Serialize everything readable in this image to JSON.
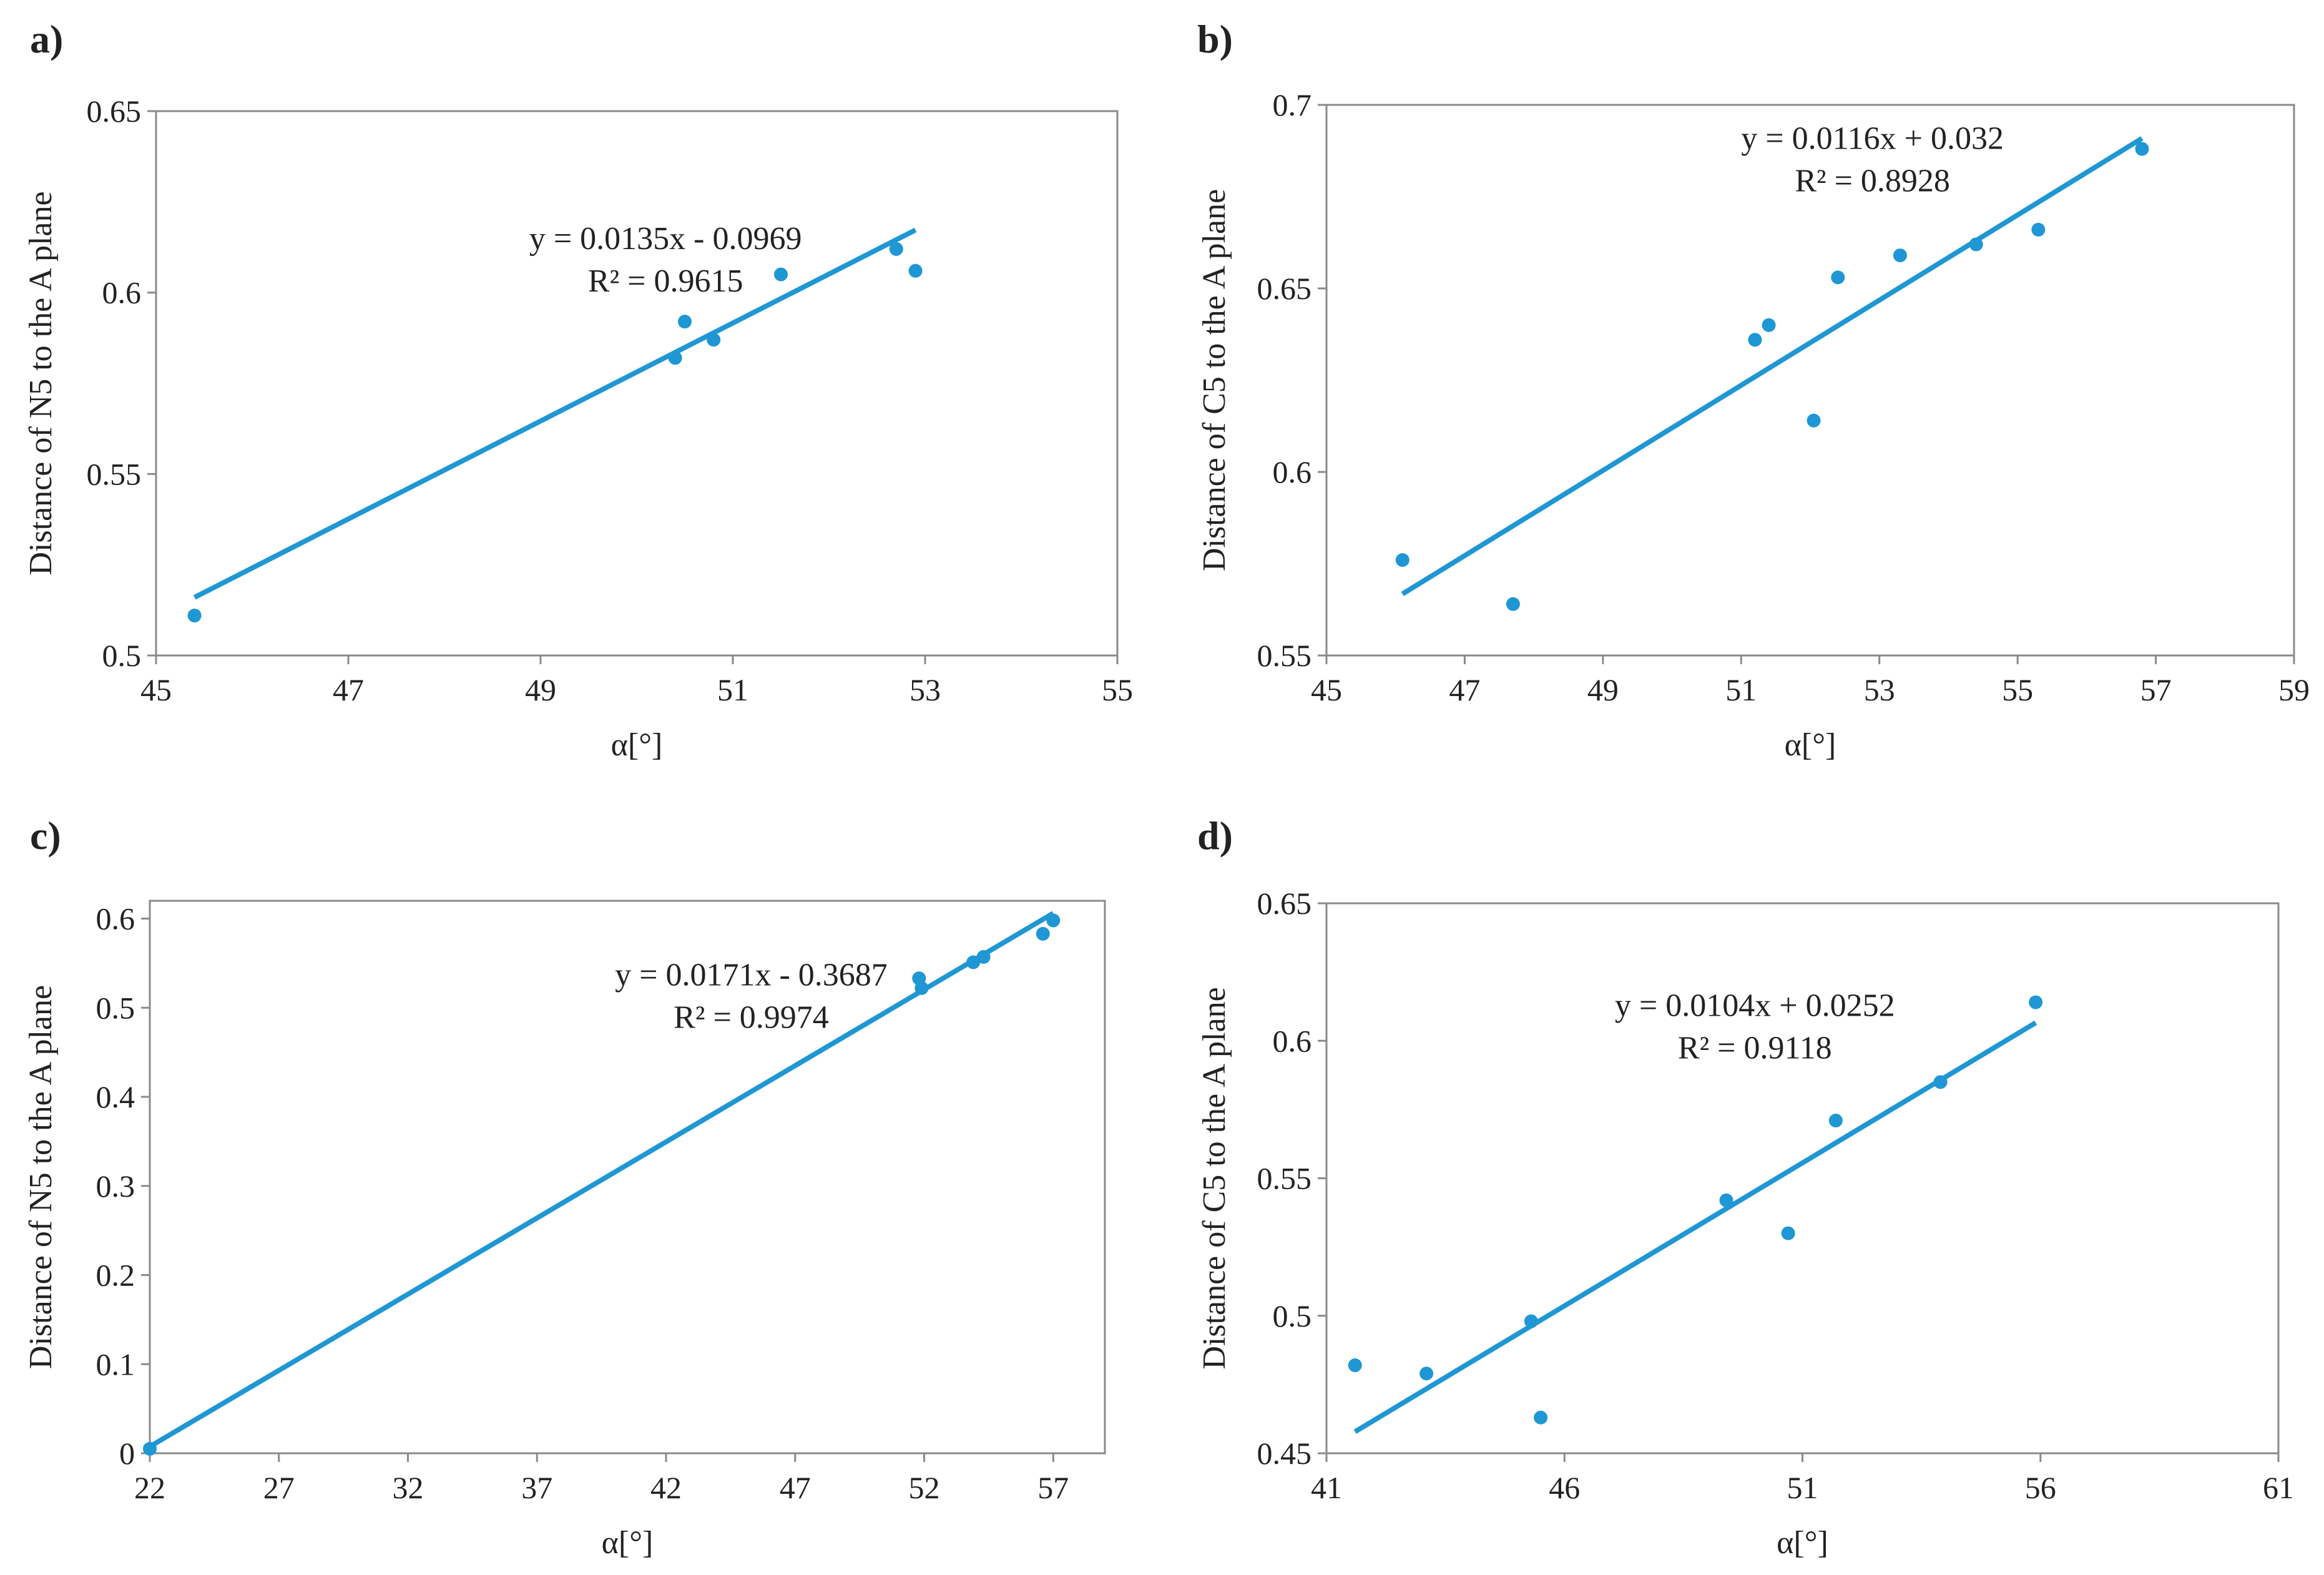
{
  "style": {
    "point_color": "#1f97d4",
    "line_color": "#1f97d4",
    "frame_color": "#8a8a8a"
  },
  "chart_data": [
    {
      "type": "scatter",
      "panel_label": "a)",
      "xlabel": "α[°]",
      "ylabel": "Distance of N5 to the A plane",
      "xlim": [
        45,
        55
      ],
      "ylim": [
        0.5,
        0.65
      ],
      "xticks": [
        45,
        47,
        49,
        51,
        53,
        55
      ],
      "xtick_labels": [
        "45",
        "47",
        "49",
        "51",
        "53",
        "55"
      ],
      "yticks": [
        0.5,
        0.55,
        0.6,
        0.65
      ],
      "ytick_labels": [
        "0.5",
        "0.55",
        "0.6",
        "0.65"
      ],
      "grid": false,
      "points": [
        [
          45.4,
          0.511
        ],
        [
          50.4,
          0.582
        ],
        [
          50.5,
          0.592
        ],
        [
          50.8,
          0.587
        ],
        [
          51.5,
          0.605
        ],
        [
          52.7,
          0.612
        ],
        [
          52.9,
          0.606
        ]
      ],
      "trendline": {
        "slope": 0.0135,
        "intercept": -0.0969,
        "x_range": [
          45.4,
          52.9
        ]
      },
      "equation": "y = 0.0135x - 0.0969",
      "r_squared": "R² = 0.9615",
      "annotation_anchor": [
        50.3,
        0.612
      ]
    },
    {
      "type": "scatter",
      "panel_label": "b)",
      "xlabel": "α[°]",
      "ylabel": "Distance of C5 to the A plane",
      "xlim": [
        45,
        59
      ],
      "ylim": [
        0.55,
        0.7
      ],
      "xticks": [
        45,
        47,
        49,
        51,
        53,
        55,
        57,
        59
      ],
      "xtick_labels": [
        "45",
        "47",
        "49",
        "51",
        "53",
        "55",
        "57",
        "59"
      ],
      "yticks": [
        0.55,
        0.6,
        0.65,
        0.7
      ],
      "ytick_labels": [
        "0.55",
        "0.6",
        "0.65",
        "0.7"
      ],
      "grid": false,
      "points": [
        [
          46.1,
          0.576
        ],
        [
          47.7,
          0.564
        ],
        [
          51.2,
          0.636
        ],
        [
          51.4,
          0.64
        ],
        [
          52.05,
          0.614
        ],
        [
          52.4,
          0.653
        ],
        [
          53.3,
          0.659
        ],
        [
          54.4,
          0.662
        ],
        [
          55.3,
          0.666
        ],
        [
          56.8,
          0.688
        ]
      ],
      "trendline": {
        "slope": 0.0116,
        "intercept": 0.032,
        "x_range": [
          46.1,
          56.8
        ]
      },
      "equation": "y = 0.0116x + 0.032",
      "r_squared": "R² = 0.8928",
      "annotation_anchor": [
        52.9,
        0.688
      ]
    },
    {
      "type": "scatter",
      "panel_label": "c)",
      "xlabel": "α[°]",
      "ylabel": "Distance of N5 to the A plane",
      "xlim": [
        22,
        59
      ],
      "ylim": [
        0,
        0.62
      ],
      "xticks": [
        22,
        27,
        32,
        37,
        42,
        47,
        52,
        57
      ],
      "xtick_labels": [
        "22",
        "27",
        "32",
        "37",
        "42",
        "47",
        "52",
        "57"
      ],
      "yticks": [
        0,
        0.1,
        0.2,
        0.3,
        0.4,
        0.5,
        0.6
      ],
      "ytick_labels": [
        "0",
        "0.1",
        "0.2",
        "0.3",
        "0.4",
        "0.5",
        "0.6"
      ],
      "grid": false,
      "points": [
        [
          22.0,
          0.005
        ],
        [
          51.8,
          0.533
        ],
        [
          51.9,
          0.522
        ],
        [
          53.9,
          0.551
        ],
        [
          54.3,
          0.557
        ],
        [
          56.6,
          0.583
        ],
        [
          57.0,
          0.598
        ]
      ],
      "trendline": {
        "slope": 0.0171,
        "intercept": -0.3687,
        "x_range": [
          22.0,
          57.0
        ]
      },
      "equation": "y = 0.0171x - 0.3687",
      "r_squared": "R² = 0.9974",
      "annotation_anchor": [
        45.3,
        0.525
      ]
    },
    {
      "type": "scatter",
      "panel_label": "d)",
      "xlabel": "α[°]",
      "ylabel": "Distance of C5 to the A plane",
      "xlim": [
        41,
        61
      ],
      "ylim": [
        0.45,
        0.65
      ],
      "xticks": [
        41,
        46,
        51,
        56,
        61
      ],
      "xtick_labels": [
        "41",
        "46",
        "51",
        "56",
        "61"
      ],
      "yticks": [
        0.45,
        0.5,
        0.55,
        0.6,
        0.65
      ],
      "ytick_labels": [
        "0.45",
        "0.5",
        "0.55",
        "0.6",
        "0.65"
      ],
      "grid": false,
      "points": [
        [
          41.6,
          0.482
        ],
        [
          43.1,
          0.479
        ],
        [
          45.3,
          0.498
        ],
        [
          45.5,
          0.463
        ],
        [
          49.4,
          0.542
        ],
        [
          50.7,
          0.53
        ],
        [
          51.7,
          0.571
        ],
        [
          53.9,
          0.585
        ],
        [
          55.9,
          0.614
        ]
      ],
      "trendline": {
        "slope": 0.0104,
        "intercept": 0.0252,
        "x_range": [
          41.6,
          55.9
        ]
      },
      "equation": "y = 0.0104x + 0.0252",
      "r_squared": "R² = 0.9118",
      "annotation_anchor": [
        50.0,
        0.609
      ]
    }
  ]
}
